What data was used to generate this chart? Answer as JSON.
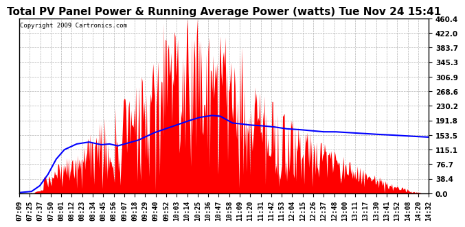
{
  "title": "Total PV Panel Power & Running Average Power (watts) Tue Nov 24 15:41",
  "copyright_text": "Copyright 2009 Cartronics.com",
  "y_ticks": [
    0.0,
    38.4,
    76.7,
    115.1,
    153.5,
    191.8,
    230.2,
    268.6,
    306.9,
    345.3,
    383.7,
    422.0,
    460.4
  ],
  "y_max": 460.4,
  "y_min": 0.0,
  "background_color": "#ffffff",
  "plot_bg_color": "#ffffff",
  "bar_color": "#ff0000",
  "line_color": "#0000ff",
  "grid_color": "#aaaaaa",
  "title_fontsize": 11,
  "tick_labels": [
    "07:09",
    "07:25",
    "07:37",
    "07:50",
    "08:01",
    "08:12",
    "08:23",
    "08:34",
    "08:45",
    "08:56",
    "09:07",
    "09:18",
    "09:29",
    "09:40",
    "09:52",
    "10:03",
    "10:14",
    "10:25",
    "10:36",
    "10:47",
    "10:58",
    "11:09",
    "11:20",
    "11:31",
    "11:42",
    "11:53",
    "12:04",
    "12:15",
    "12:26",
    "12:37",
    "12:48",
    "13:00",
    "13:11",
    "13:17",
    "13:30",
    "13:41",
    "13:52",
    "14:08",
    "14:20",
    "14:32"
  ],
  "n_points": 500,
  "seed": 42,
  "running_avg_points": [
    [
      0,
      2
    ],
    [
      15,
      5
    ],
    [
      25,
      20
    ],
    [
      35,
      50
    ],
    [
      45,
      90
    ],
    [
      55,
      115
    ],
    [
      70,
      130
    ],
    [
      85,
      135
    ],
    [
      100,
      128
    ],
    [
      110,
      130
    ],
    [
      120,
      125
    ],
    [
      145,
      140
    ],
    [
      165,
      160
    ],
    [
      185,
      175
    ],
    [
      205,
      190
    ],
    [
      220,
      200
    ],
    [
      235,
      205
    ],
    [
      245,
      203
    ],
    [
      260,
      185
    ],
    [
      270,
      183
    ],
    [
      280,
      180
    ],
    [
      295,
      178
    ],
    [
      310,
      175
    ],
    [
      325,
      170
    ],
    [
      340,
      168
    ],
    [
      355,
      165
    ],
    [
      370,
      162
    ],
    [
      385,
      162
    ],
    [
      400,
      160
    ],
    [
      415,
      158
    ],
    [
      430,
      156
    ],
    [
      450,
      154
    ],
    [
      465,
      152
    ],
    [
      480,
      150
    ],
    [
      499,
      148
    ]
  ]
}
